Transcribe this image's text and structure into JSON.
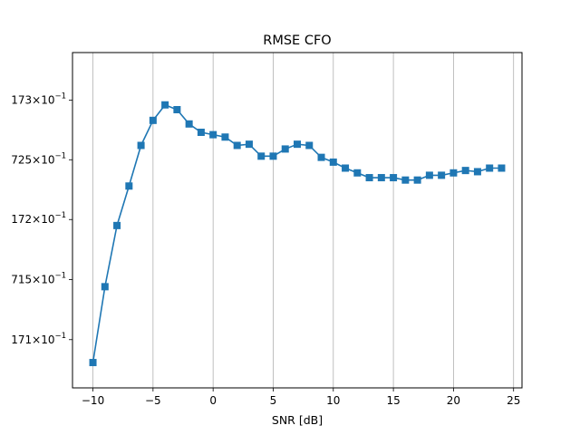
{
  "chart_data": {
    "type": "line",
    "title": "RMSE CFO",
    "xlabel": "SNR [dB]",
    "ylabel": "",
    "xlim": [
      -11.7,
      25.7
    ],
    "ylim": [
      0.1706,
      0.1734
    ],
    "yscale": "log",
    "grid": "x-only",
    "x_ticks": [
      -10,
      -5,
      0,
      5,
      10,
      15,
      20,
      25
    ],
    "x_tick_labels": [
      "−10",
      "−5",
      "0",
      "5",
      "10",
      "15",
      "20",
      "25"
    ],
    "y_ticks": [
      0.171,
      0.1715,
      0.172,
      0.1725,
      0.173
    ],
    "y_tick_labels": [
      {
        "mantissa": "171",
        "exponent": "−1"
      },
      {
        "mantissa": "715",
        "exponent": "−1"
      },
      {
        "mantissa": "172",
        "exponent": "−1"
      },
      {
        "mantissa": "725",
        "exponent": "−1"
      },
      {
        "mantissa": "173",
        "exponent": "−1"
      }
    ],
    "y_tick_times": "×10",
    "series": [
      {
        "name": "RMSE CFO",
        "color": "#1f77b4",
        "marker": "square",
        "x": [
          -10,
          -9,
          -8,
          -7,
          -6,
          -5,
          -4,
          -3,
          -2,
          -1,
          0,
          1,
          2,
          3,
          4,
          5,
          6,
          7,
          8,
          9,
          10,
          11,
          12,
          13,
          14,
          15,
          16,
          17,
          18,
          19,
          20,
          21,
          22,
          23,
          24
        ],
        "y": [
          0.17081,
          0.17144,
          0.17195,
          0.17228,
          0.17262,
          0.17283,
          0.17296,
          0.17292,
          0.1728,
          0.17273,
          0.17271,
          0.17269,
          0.17262,
          0.17263,
          0.17253,
          0.17253,
          0.17259,
          0.17263,
          0.17262,
          0.17252,
          0.17248,
          0.17243,
          0.17239,
          0.17235,
          0.17235,
          0.17235,
          0.17233,
          0.17233,
          0.17237,
          0.17237,
          0.17239,
          0.17241,
          0.1724,
          0.17243,
          0.17243
        ]
      }
    ]
  }
}
